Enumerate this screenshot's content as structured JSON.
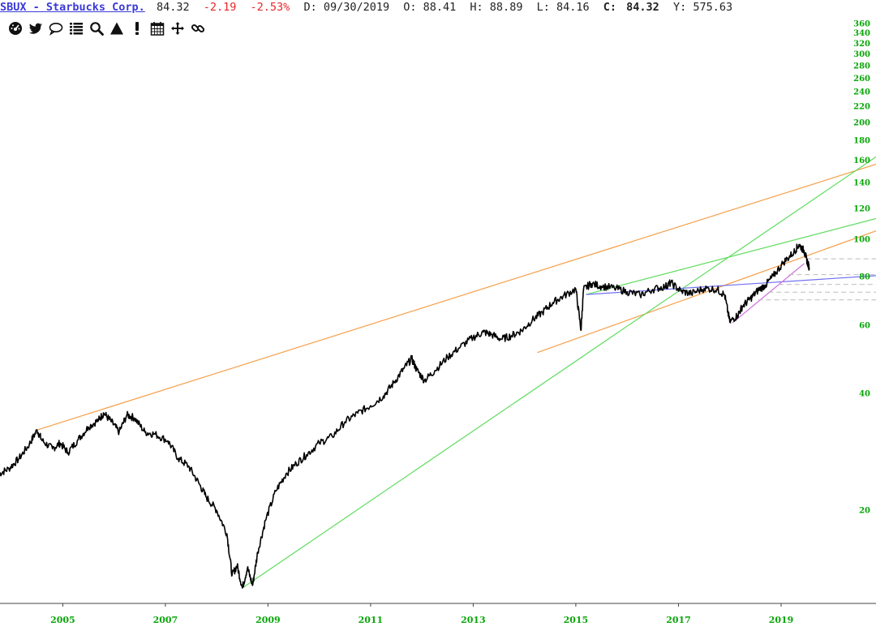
{
  "header": {
    "symbol": "SBUX - Starbucks Corp.",
    "price": "84.32",
    "change": "-2.19",
    "change_pct": "-2.53%",
    "date": "D: 09/30/2019",
    "open": "O: 88.41",
    "high": "H: 88.89",
    "low": "L: 84.16",
    "close_label": "C:",
    "close_value": "84.32",
    "y_readout": "Y: 575.63"
  },
  "toolbar": {
    "icons": [
      "dashboard-icon",
      "twitter-icon",
      "comment-icon",
      "list-icon",
      "search-icon",
      "warning-icon",
      "exclamation-icon",
      "calendar-icon",
      "move-icon",
      "link-icon"
    ]
  },
  "colors": {
    "price_line": "#000000",
    "tick_label": "#0aa60a",
    "orange_trend": "#f5a04a",
    "green_trend": "#5fdc5f",
    "blue_trend": "#7070f0",
    "violet_trend": "#d070e0",
    "dashed_level": "#bbbbbb"
  },
  "chart_data": {
    "type": "line",
    "title": "SBUX - Starbucks Corp.",
    "xlabel": "",
    "ylabel": "",
    "y_scale": "log",
    "xlim": [
      2003.3,
      2021.1
    ],
    "ylim": [
      11.5,
      365
    ],
    "grid": false,
    "y_ticks": [
      360,
      340,
      320,
      300,
      280,
      260,
      240,
      220,
      200,
      180,
      160,
      140,
      120,
      100,
      80,
      60,
      40,
      20
    ],
    "x_ticks": [
      "2005",
      "2007",
      "2009",
      "2011",
      "2013",
      "2015",
      "2017",
      "2019"
    ],
    "series": [
      {
        "values": [
          [
            2004.0,
            24.8
          ],
          [
            2004.2,
            25.6
          ],
          [
            2004.4,
            27.2
          ],
          [
            2004.6,
            29.6
          ],
          [
            2004.75,
            32.2
          ],
          [
            2004.85,
            30.2
          ],
          [
            2005.05,
            28.8
          ],
          [
            2005.2,
            29.8
          ],
          [
            2005.35,
            28.2
          ],
          [
            2005.55,
            30.4
          ],
          [
            2005.75,
            32.8
          ],
          [
            2005.95,
            34.2
          ],
          [
            2006.05,
            35.6
          ],
          [
            2006.2,
            33.8
          ],
          [
            2006.35,
            31.8
          ],
          [
            2006.5,
            35.2
          ],
          [
            2006.65,
            34.6
          ],
          [
            2006.85,
            31.8
          ],
          [
            2007.05,
            31.4
          ],
          [
            2007.3,
            30.2
          ],
          [
            2007.5,
            27.2
          ],
          [
            2007.7,
            26.0
          ],
          [
            2007.9,
            23.5
          ],
          [
            2008.05,
            21.6
          ],
          [
            2008.25,
            20.0
          ],
          [
            2008.45,
            17.4
          ],
          [
            2008.55,
            13.6
          ],
          [
            2008.65,
            14.4
          ],
          [
            2008.75,
            12.6
          ],
          [
            2008.85,
            14.2
          ],
          [
            2008.95,
            12.8
          ],
          [
            2009.05,
            15.6
          ],
          [
            2009.2,
            18.8
          ],
          [
            2009.4,
            22.4
          ],
          [
            2009.6,
            24.8
          ],
          [
            2009.8,
            26.4
          ],
          [
            2010.0,
            27.8
          ],
          [
            2010.25,
            29.8
          ],
          [
            2010.5,
            31.0
          ],
          [
            2010.75,
            33.8
          ],
          [
            2011.0,
            35.6
          ],
          [
            2011.25,
            37.2
          ],
          [
            2011.5,
            39.4
          ],
          [
            2011.7,
            42.6
          ],
          [
            2011.9,
            46.4
          ],
          [
            2012.05,
            49.2
          ],
          [
            2012.15,
            46.0
          ],
          [
            2012.3,
            43.2
          ],
          [
            2012.5,
            45.8
          ],
          [
            2012.75,
            49.6
          ],
          [
            2013.0,
            52.8
          ],
          [
            2013.25,
            55.8
          ],
          [
            2013.45,
            57.6
          ],
          [
            2013.6,
            56.8
          ],
          [
            2013.8,
            55.2
          ],
          [
            2014.0,
            56.4
          ],
          [
            2014.2,
            58.2
          ],
          [
            2014.4,
            61.8
          ],
          [
            2014.6,
            64.8
          ],
          [
            2014.8,
            68.6
          ],
          [
            2015.0,
            71.2
          ],
          [
            2015.25,
            74.4
          ],
          [
            2015.35,
            58.2
          ],
          [
            2015.4,
            74.2
          ],
          [
            2015.55,
            76.8
          ],
          [
            2015.75,
            75.6
          ],
          [
            2016.0,
            74.8
          ],
          [
            2016.25,
            73.2
          ],
          [
            2016.5,
            71.8
          ],
          [
            2016.75,
            74.2
          ],
          [
            2017.0,
            75.6
          ],
          [
            2017.1,
            77.2
          ],
          [
            2017.3,
            73.4
          ],
          [
            2017.5,
            72.4
          ],
          [
            2017.75,
            74.6
          ],
          [
            2018.0,
            74.2
          ],
          [
            2018.15,
            71.8
          ],
          [
            2018.25,
            61.2
          ],
          [
            2018.4,
            63.6
          ],
          [
            2018.5,
            67.2
          ],
          [
            2018.65,
            70.2
          ],
          [
            2018.8,
            73.8
          ],
          [
            2018.95,
            76.2
          ],
          [
            2019.1,
            80.4
          ],
          [
            2019.3,
            87.2
          ],
          [
            2019.5,
            92.6
          ],
          [
            2019.6,
            96.8
          ],
          [
            2019.7,
            93.2
          ],
          [
            2019.75,
            88.4
          ],
          [
            2019.8,
            84.32
          ]
        ]
      }
    ],
    "trendlines": [
      {
        "color": "orange",
        "points": [
          [
            2004.75,
            32.2
          ],
          [
            2021.1,
            156.0
          ]
        ]
      },
      {
        "color": "orange",
        "points": [
          [
            2014.5,
            51.0
          ],
          [
            2021.1,
            105.0
          ]
        ]
      },
      {
        "color": "green",
        "points": [
          [
            2008.75,
            12.6
          ],
          [
            2021.1,
            163.0
          ]
        ]
      },
      {
        "color": "green",
        "points": [
          [
            2015.45,
            72.0
          ],
          [
            2021.1,
            113.0
          ]
        ]
      },
      {
        "color": "blue",
        "points": [
          [
            2015.45,
            72.0
          ],
          [
            2021.1,
            80.5
          ]
        ]
      },
      {
        "color": "violet",
        "points": [
          [
            2018.3,
            60.8
          ],
          [
            2019.7,
            86.5
          ]
        ]
      },
      {
        "color": "gray-dashed",
        "points": [
          [
            2019.75,
            89.0
          ],
          [
            2021.1,
            89.0
          ]
        ]
      },
      {
        "color": "gray-dashed",
        "points": [
          [
            2019.4,
            81.0
          ],
          [
            2021.1,
            81.0
          ]
        ]
      },
      {
        "color": "gray-dashed",
        "points": [
          [
            2019.2,
            76.4
          ],
          [
            2021.1,
            76.4
          ]
        ]
      },
      {
        "color": "gray-dashed",
        "points": [
          [
            2019.0,
            73.0
          ],
          [
            2021.1,
            73.0
          ]
        ]
      },
      {
        "color": "gray-dashed",
        "points": [
          [
            2018.8,
            69.7
          ],
          [
            2021.1,
            69.7
          ]
        ]
      }
    ]
  }
}
